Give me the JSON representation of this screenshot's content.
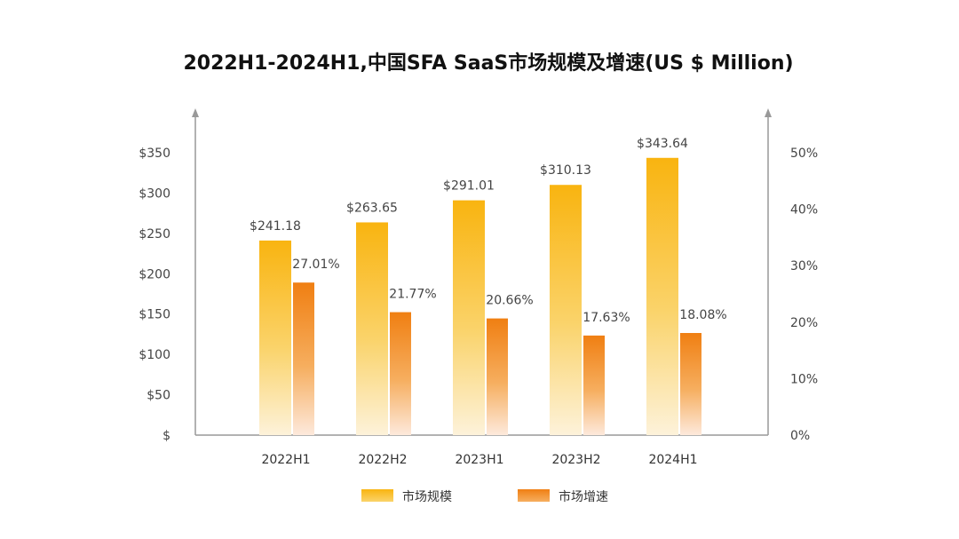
{
  "chart_data": {
    "type": "bar",
    "title": "2022H1-2024H1,中国SFA SaaS市场规模及增速(US $ Million)",
    "categories": [
      "2022H1",
      "2022H2",
      "2023H1",
      "2023H2",
      "2024H1"
    ],
    "series": [
      {
        "name": "市场规模",
        "axis": "left",
        "values": [
          241.18,
          263.65,
          291.01,
          310.13,
          343.64
        ],
        "labels": [
          "$241.18",
          "$263.65",
          "$291.01",
          "$310.13",
          "$343.64"
        ],
        "color": "#F9B410"
      },
      {
        "name": "市场增速",
        "axis": "right",
        "values": [
          27.01,
          21.77,
          20.66,
          17.63,
          18.08
        ],
        "labels": [
          "27.01%",
          "21.77%",
          "20.66%",
          "17.63%",
          "18.08%"
        ],
        "color": "#F28C1C"
      }
    ],
    "left_axis": {
      "ylim": [
        0,
        350
      ],
      "ticks": [
        0,
        50,
        100,
        150,
        200,
        250,
        300,
        350
      ],
      "tick_labels": [
        "$",
        "$50",
        "$100",
        "$150",
        "$200",
        "$250",
        "$300",
        "$350"
      ]
    },
    "right_axis": {
      "ylim": [
        0,
        50
      ],
      "ticks": [
        0,
        10,
        20,
        30,
        40,
        50
      ],
      "tick_labels": [
        "0%",
        "10%",
        "20%",
        "30%",
        "40%",
        "50%"
      ]
    },
    "grid": false,
    "legend_position": "bottom"
  }
}
